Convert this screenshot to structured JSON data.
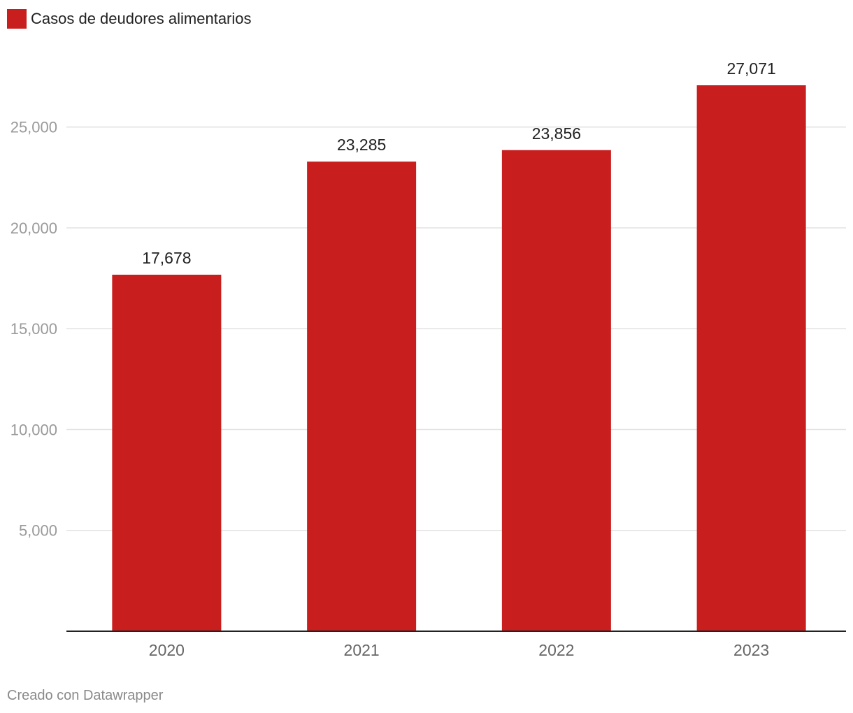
{
  "legend": {
    "label": "Casos de deudores alimentarios",
    "color": "#c91e1e"
  },
  "footer": {
    "credit": "Creado con Datawrapper"
  },
  "colors": {
    "bar": "#c91e1e",
    "grid": "#e2e2e2",
    "axis": "#222222",
    "tick_label": "#9a9a9a",
    "category_label": "#666666",
    "value_label": "#222222"
  },
  "chart_data": {
    "type": "bar",
    "title": "",
    "xlabel": "",
    "ylabel": "",
    "categories": [
      "2020",
      "2021",
      "2022",
      "2023"
    ],
    "series": [
      {
        "name": "Casos de deudores alimentarios",
        "values": [
          17678,
          23285,
          23856,
          27071
        ],
        "labels": [
          "17,678",
          "23,285",
          "23,856",
          "27,071"
        ]
      }
    ],
    "ylim": [
      0,
      27071
    ],
    "yticks": [
      5000,
      10000,
      15000,
      20000,
      25000
    ],
    "ytick_labels": [
      "5,000",
      "10,000",
      "15,000",
      "20,000",
      "25,000"
    ],
    "grid": true,
    "legend_position": "top-left"
  }
}
